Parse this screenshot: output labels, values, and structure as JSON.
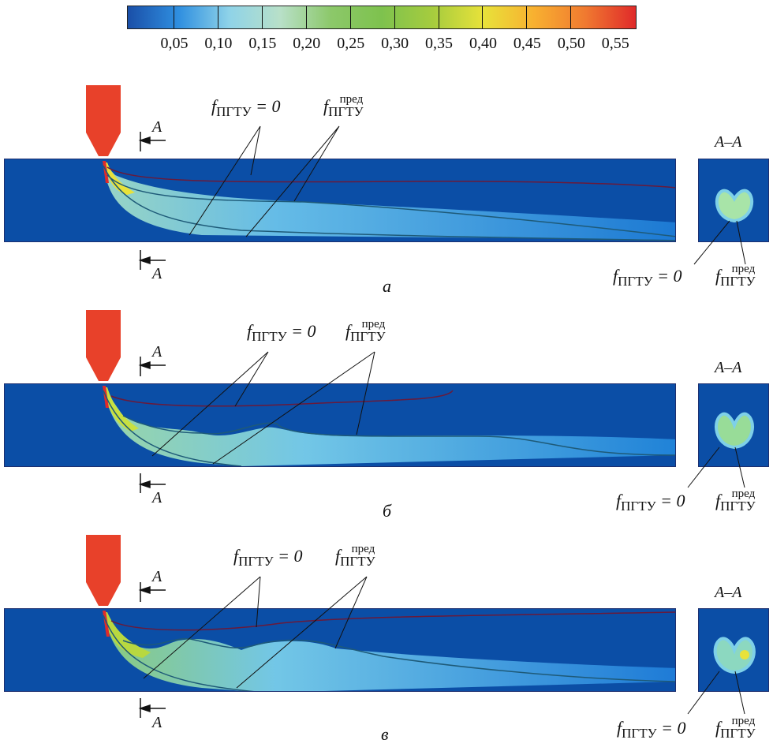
{
  "colorbar": {
    "tick_labels": [
      "0,05",
      "0,10",
      "0,15",
      "0,20",
      "0,25",
      "0,30",
      "0,35",
      "0,40",
      "0,45",
      "0,50",
      "0,55"
    ],
    "colors": [
      "#1a4fa8",
      "#2f8fe0",
      "#8fd3e8",
      "#b8e0c8",
      "#8cc86a",
      "#7ec24e",
      "#a6cc3e",
      "#e8e23a",
      "#f8b030",
      "#f07a30",
      "#e02a2a"
    ]
  },
  "labels": {
    "f_zero_main": "f",
    "f_zero_sub": "ПГТУ",
    "f_zero_eq": " = 0",
    "f_pred_main": "f",
    "f_pred_sub": "ПГТУ",
    "f_pred_sup": "пред",
    "section_title": "A–A",
    "section_mark": "A"
  },
  "panels": [
    {
      "letter": "а"
    },
    {
      "letter": "б"
    },
    {
      "letter": "в"
    }
  ],
  "colors": {
    "steel": "#0b4ea6",
    "nozzle": "#e8412a",
    "contour_zero": "#6a1a3a",
    "contour_pred": "#1e5a78"
  }
}
